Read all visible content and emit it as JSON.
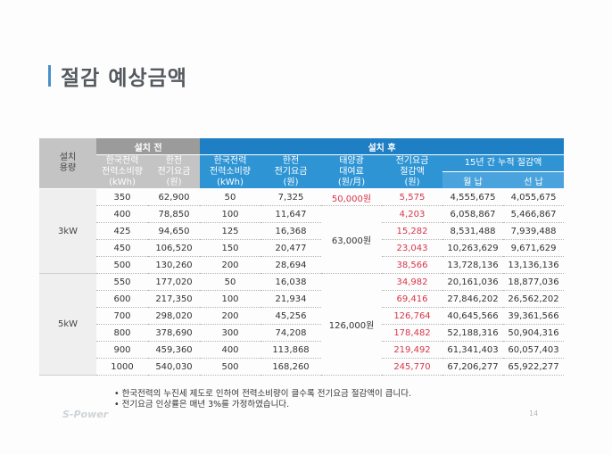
{
  "title": "절감 예상금액",
  "headers": {
    "before": "설치 전",
    "after": "설치 후",
    "capacity": "설치\n용량",
    "kepco_usage_before": "한국전력\n전력소비량\n(kWh)",
    "kepco_bill_before": "한전\n전기요금\n(원)",
    "kepco_usage_after": "한국전력\n전력소비량\n(kWh)",
    "kepco_bill_after": "한전\n전기요금\n(원)",
    "solar_rental": "태양광\n대여료\n(원/月)",
    "savings": "전기요금\n절감액\n(원)",
    "cumulative": "15년 간 누적 절감액",
    "monthly": "월 납",
    "prepaid": "선 납"
  },
  "groups": [
    {
      "capacity": "3kW",
      "rental": "63,000원"
    },
    {
      "capacity": "5kW",
      "rental": "126,000원"
    }
  ],
  "rental_first_row": "50,000원",
  "rows": [
    [
      "350",
      "62,900",
      "50",
      "7,325",
      "5,575",
      "4,555,675",
      "4,055,675"
    ],
    [
      "400",
      "78,850",
      "100",
      "11,647",
      "4,203",
      "6,058,867",
      "5,466,867"
    ],
    [
      "425",
      "94,650",
      "125",
      "16,368",
      "15,282",
      "8,531,488",
      "7,939,488"
    ],
    [
      "450",
      "106,520",
      "150",
      "20,477",
      "23,043",
      "10,263,629",
      "9,671,629"
    ],
    [
      "500",
      "130,260",
      "200",
      "28,694",
      "38,566",
      "13,728,136",
      "13,136,136"
    ],
    [
      "550",
      "177,020",
      "50",
      "16,038",
      "34,982",
      "20,161,036",
      "18,877,036"
    ],
    [
      "600",
      "217,350",
      "100",
      "21,934",
      "69,416",
      "27,846,202",
      "26,562,202"
    ],
    [
      "700",
      "298,020",
      "200",
      "45,256",
      "126,764",
      "40,645,566",
      "39,361,566"
    ],
    [
      "800",
      "378,690",
      "300",
      "74,208",
      "178,482",
      "52,188,316",
      "50,904,316"
    ],
    [
      "900",
      "459,360",
      "400",
      "113,868",
      "219,492",
      "61,341,403",
      "60,057,403"
    ],
    [
      "1000",
      "540,030",
      "500",
      "168,260",
      "245,770",
      "67,206,277",
      "65,922,277"
    ]
  ],
  "notes": [
    "한국전력의 누진세 제도로 인하여 전력소비량이 클수록 전기요금 절감액이 큽니다.",
    "전기요금 인상률은 매년 3%를 가정하였습니다."
  ],
  "logo": "S-Power",
  "page_number": "14",
  "colors": {
    "accent_red": "#d8354a",
    "header_blue": "#1f7fc4",
    "header_gray": "#9b9b9b"
  }
}
